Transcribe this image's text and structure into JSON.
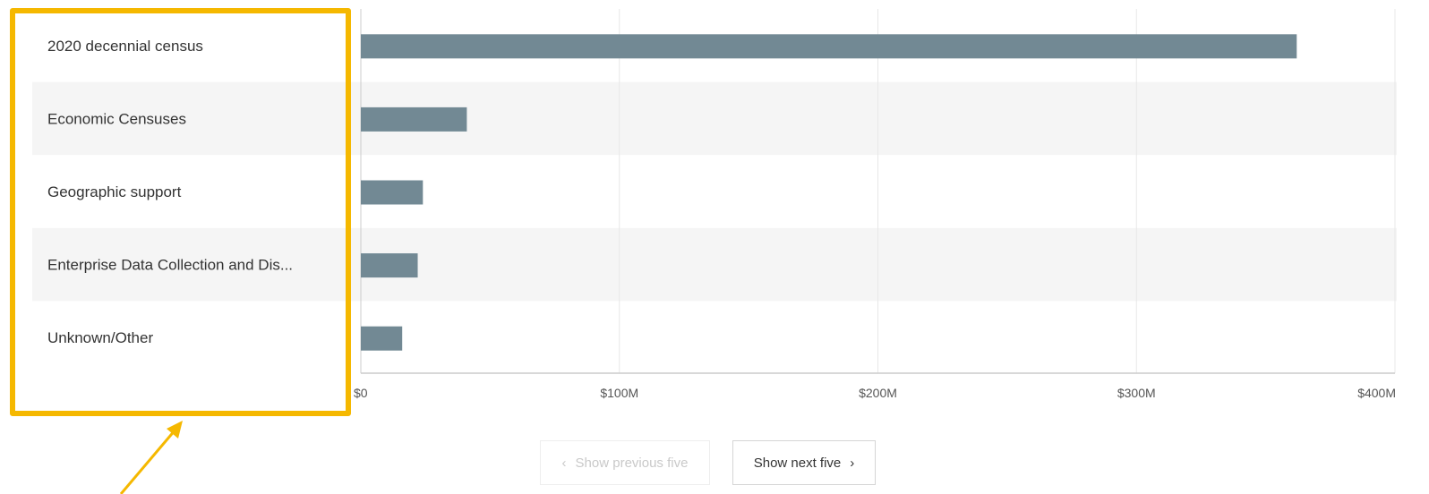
{
  "chart_data": {
    "type": "bar",
    "orientation": "horizontal",
    "categories": [
      "2020 decennial census",
      "Economic Censuses",
      "Geographic support",
      "Enterprise Data Collection and Dis...",
      "Unknown/Other"
    ],
    "values": [
      362,
      41,
      24,
      22,
      16
    ],
    "value_unit": "$M",
    "xlim": [
      0,
      400
    ],
    "x_ticks": [
      "$0",
      "$100M",
      "$200M",
      "$300M",
      "$400M"
    ],
    "grid": true,
    "bar_color": "#728994",
    "alternate_row_color": "#f5f5f5"
  },
  "pager": {
    "prev_label": "Show previous five",
    "next_label": "Show next five",
    "prev_icon": "chevron-left-icon",
    "next_icon": "chevron-right-icon"
  },
  "annotation": {
    "highlight_color": "#f5b800"
  }
}
